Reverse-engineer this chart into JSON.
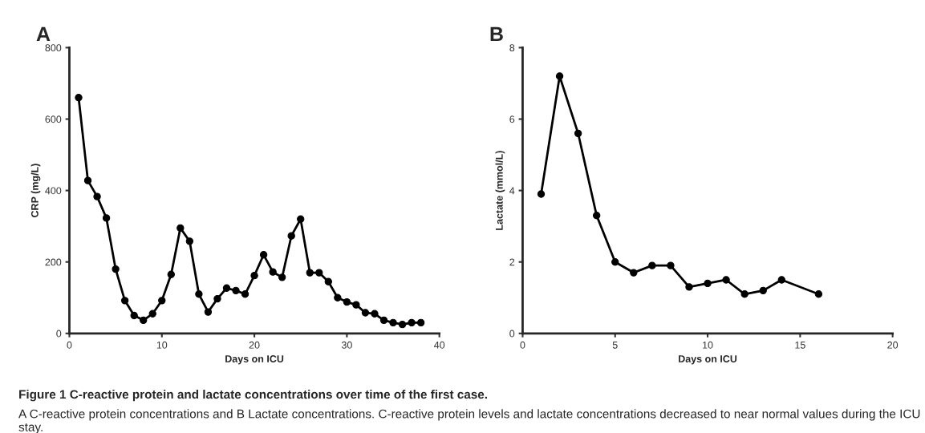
{
  "chart_data": [
    {
      "type": "line",
      "title": "A",
      "xlabel": "Days on ICU",
      "ylabel": "CRP (mg/L)",
      "marker": "circle",
      "line_style": "solid",
      "grid": false,
      "x": [
        1,
        2,
        3,
        4,
        5,
        6,
        7,
        8,
        9,
        10,
        11,
        12,
        13,
        14,
        15,
        16,
        17,
        18,
        19,
        20,
        21,
        22,
        23,
        24,
        25,
        26,
        27,
        28,
        29,
        30,
        31,
        32,
        33,
        34,
        35,
        36,
        37,
        38
      ],
      "series": [
        {
          "color": "#000000",
          "values": [
            660,
            428,
            383,
            323,
            180,
            92,
            50,
            37,
            55,
            92,
            165,
            295,
            258,
            110,
            60,
            97,
            127,
            120,
            110,
            162,
            220,
            172,
            157,
            273,
            320,
            170,
            170,
            145,
            100,
            88,
            80,
            58,
            55,
            37,
            30,
            25,
            30,
            30
          ]
        }
      ],
      "xlim": [
        0,
        40
      ],
      "xticks": [
        0,
        10,
        20,
        30,
        40
      ],
      "ylim": [
        0,
        800
      ],
      "yticks": [
        0,
        200,
        400,
        600,
        800
      ],
      "annotations": [
        "Figure 1 C-reactive protein and lactate concentrations over time of the first case.",
        "A C-reactive protein concentrations and B Lactate concentrations. C-reactive protein levels and lactate concentrations decreased to near normal values during the ICU stay."
      ]
    },
    {
      "type": "line",
      "title": "B",
      "xlabel": "Days on ICU",
      "ylabel": "Lactate (mmol/L)",
      "marker": "circle",
      "line_style": "solid",
      "grid": false,
      "x": [
        1,
        2,
        3,
        4,
        5,
        6,
        7,
        8,
        9,
        10,
        11,
        12,
        13,
        14,
        16
      ],
      "series": [
        {
          "color": "#000000",
          "values": [
            3.9,
            7.2,
            5.6,
            3.3,
            2.0,
            1.7,
            1.9,
            1.9,
            1.3,
            1.4,
            1.5,
            1.1,
            1.2,
            1.5,
            1.1
          ]
        }
      ],
      "xlim": [
        0,
        20
      ],
      "xticks": [
        0,
        5,
        10,
        15,
        20
      ],
      "ylim": [
        0,
        8
      ],
      "yticks": [
        0,
        2,
        4,
        6,
        8
      ]
    }
  ]
}
